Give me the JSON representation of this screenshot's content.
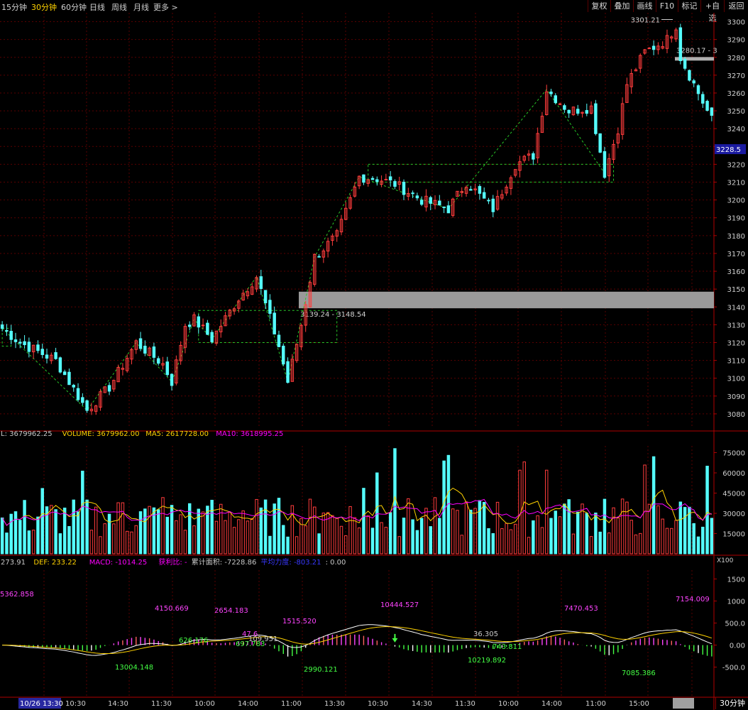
{
  "toolbar": {
    "periods": [
      "15分钟",
      "30分钟",
      "60分钟",
      "日线",
      "周线",
      "月线",
      "更多 >"
    ],
    "active_period": "30分钟",
    "buttons": [
      "复权",
      "叠加",
      "画线",
      "F10",
      "标记",
      "+自选",
      "返回"
    ]
  },
  "main_chart": {
    "y_ticks": [
      "3300",
      "3290",
      "3280",
      "3270",
      "3260",
      "3250",
      "3240",
      "3230",
      "3220",
      "3210",
      "3200",
      "3190",
      "3180",
      "3170",
      "3160",
      "3150",
      "3140",
      "3130",
      "3120",
      "3110",
      "3100",
      "3090",
      "3080"
    ],
    "current_price": "3228.5",
    "high_marker": "3301.21",
    "zone_upper_label": "3280.17 - 3",
    "zone_lower_label": "3139.24 - 3148.54"
  },
  "volume_panel": {
    "header": [
      {
        "text": "L: 3679962.25",
        "color": "#c8c8c8"
      },
      {
        "text": "VOLUME: 3679962.00",
        "color": "#ffd200"
      },
      {
        "text": "MA5: 2617728.00",
        "color": "#ffd200"
      },
      {
        "text": "MA10: 3618995.25",
        "color": "#ff00ff"
      }
    ],
    "y_ticks": [
      "75000",
      "60000",
      "45000",
      "30000",
      "15000"
    ],
    "unit": "X100"
  },
  "macd_panel": {
    "header": [
      {
        "text": "273.91",
        "color": "#c8c8c8"
      },
      {
        "text": "DEF: 233.22",
        "color": "#ffd200"
      },
      {
        "text": "MACD: -1014.25",
        "color": "#ff00ff"
      },
      {
        "text": "获利比: -",
        "color": "#ff00ff"
      },
      {
        "text": "累计面积: -7228.86",
        "color": "#c8c8c8"
      },
      {
        "text": "平均力度: -803.21",
        "color": "#3838ff"
      },
      {
        "text": ": 0.00",
        "color": "#c8c8c8"
      }
    ],
    "y_ticks": [
      "1500",
      "1000",
      "500.0",
      "0.00",
      "-500.0"
    ],
    "area_labels": [
      {
        "text": "5362.858",
        "color": "#ff44ff"
      },
      {
        "text": "13004.148",
        "color": "#44ff44"
      },
      {
        "text": "4150.669",
        "color": "#ff44ff"
      },
      {
        "text": "626.176",
        "color": "#44ff44"
      },
      {
        "text": "2654.183",
        "color": "#ff44ff"
      },
      {
        "text": "697.783",
        "color": "#44ff44"
      },
      {
        "text": "47.6",
        "color": "#ff44ff"
      },
      {
        "text": "109.951",
        "color": "#c8c8c8"
      },
      {
        "text": "1515.520",
        "color": "#ff44ff"
      },
      {
        "text": "2990.121",
        "color": "#44ff44"
      },
      {
        "text": "10444.527",
        "color": "#ff44ff"
      },
      {
        "text": "36.305",
        "color": "#c8c8c8"
      },
      {
        "text": "743.811",
        "color": "#44ff44"
      },
      {
        "text": "10219.892",
        "color": "#44ff44"
      },
      {
        "text": "7470.453",
        "color": "#ff44ff"
      },
      {
        "text": "7085.386",
        "color": "#44ff44"
      },
      {
        "text": "7154.009",
        "color": "#ff44ff"
      }
    ]
  },
  "x_axis": {
    "start_label": "10/26 13:30",
    "labels": [
      "10:30",
      "14:30",
      "11:30",
      "10:00",
      "14:00",
      "11:00",
      "13:30",
      "10:30",
      "14:30",
      "11:30",
      "10:00",
      "14:00",
      "11:00",
      "15:00"
    ],
    "timeframe": "30分钟"
  },
  "colors": {
    "up": "#ff3c3c",
    "down": "#54fcfc",
    "grid": "#5a0000",
    "axis": "#b00000",
    "ma5": "#ffd200",
    "ma10": "#ff00ff",
    "dif": "#ffffff",
    "dea": "#ffd200"
  },
  "chart_data": {
    "type": "candlestick",
    "interval": "30分钟",
    "count": 160,
    "y_range_price": [
      3072,
      3305
    ],
    "y_range_volume": [
      0,
      80000
    ],
    "y_range_macd": [
      -1150,
      1700
    ],
    "waypoints": [
      [
        0,
        3128
      ],
      [
        4,
        3120
      ],
      [
        12,
        3110
      ],
      [
        19,
        3082
      ],
      [
        24,
        3095
      ],
      [
        30,
        3120
      ],
      [
        36,
        3108
      ],
      [
        38,
        3098
      ],
      [
        41,
        3130
      ],
      [
        43,
        3133
      ],
      [
        47,
        3122
      ],
      [
        53,
        3145
      ],
      [
        57,
        3157
      ],
      [
        62,
        3118
      ],
      [
        64,
        3098
      ],
      [
        67,
        3130
      ],
      [
        70,
        3168
      ],
      [
        75,
        3180
      ],
      [
        80,
        3213
      ],
      [
        84,
        3212
      ],
      [
        88,
        3209
      ],
      [
        94,
        3200
      ],
      [
        100,
        3195
      ],
      [
        104,
        3210
      ],
      [
        110,
        3195
      ],
      [
        115,
        3220
      ],
      [
        119,
        3225
      ],
      [
        122,
        3262
      ],
      [
        127,
        3250
      ],
      [
        132,
        3252
      ],
      [
        135,
        3215
      ],
      [
        138,
        3240
      ],
      [
        140,
        3265
      ],
      [
        144,
        3283
      ],
      [
        149,
        3290
      ],
      [
        151,
        3298
      ],
      [
        152,
        3280
      ],
      [
        155,
        3265
      ],
      [
        159,
        3245
      ]
    ]
  }
}
